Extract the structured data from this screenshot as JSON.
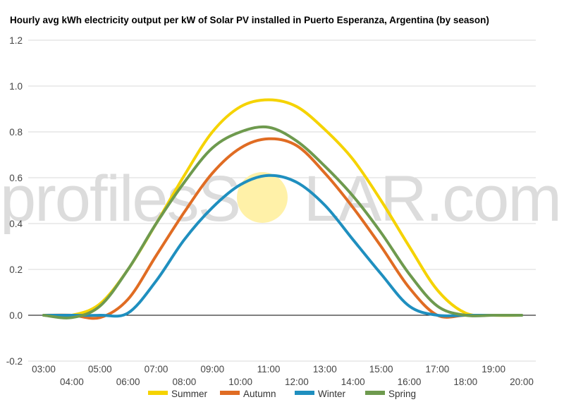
{
  "chart_data": {
    "type": "line",
    "title": "Hourly avg kWh electricity output per kW of Solar PV installed in Puerto Esperanza, Argentina (by season)",
    "xlabel": "",
    "ylabel": "",
    "x": [
      "03:00",
      "04:00",
      "05:00",
      "06:00",
      "07:00",
      "08:00",
      "09:00",
      "10:00",
      "11:00",
      "12:00",
      "13:00",
      "14:00",
      "15:00",
      "16:00",
      "17:00",
      "18:00",
      "19:00",
      "20:00"
    ],
    "ylim": [
      -0.2,
      1.2
    ],
    "yticks": [
      -0.2,
      0.0,
      0.2,
      0.4,
      0.6,
      0.8,
      1.0,
      1.2
    ],
    "grid": true,
    "legend_position": "bottom",
    "series": [
      {
        "name": "Summer",
        "color": "#f5d300",
        "values": [
          0.0,
          0.0,
          0.05,
          0.2,
          0.4,
          0.61,
          0.8,
          0.91,
          0.94,
          0.91,
          0.81,
          0.68,
          0.5,
          0.3,
          0.11,
          0.01,
          0.0,
          0.0
        ]
      },
      {
        "name": "Autumn",
        "color": "#e06c23",
        "values": [
          0.0,
          0.0,
          -0.01,
          0.07,
          0.26,
          0.45,
          0.62,
          0.73,
          0.77,
          0.74,
          0.62,
          0.47,
          0.3,
          0.12,
          0.0,
          0.0,
          0.0,
          0.0
        ]
      },
      {
        "name": "Winter",
        "color": "#1f8fbf",
        "values": [
          0.0,
          0.0,
          0.0,
          0.01,
          0.15,
          0.33,
          0.47,
          0.57,
          0.61,
          0.58,
          0.48,
          0.33,
          0.18,
          0.04,
          0.0,
          0.0,
          0.0,
          0.0
        ]
      },
      {
        "name": "Spring",
        "color": "#6e9a4e",
        "values": [
          0.0,
          -0.01,
          0.04,
          0.2,
          0.4,
          0.58,
          0.73,
          0.8,
          0.82,
          0.76,
          0.65,
          0.52,
          0.36,
          0.18,
          0.04,
          0.0,
          0.0,
          0.0
        ]
      }
    ]
  },
  "watermark": {
    "left": "profilesS",
    "right": "LAR.com",
    "sun_color": "#fff1a8"
  }
}
